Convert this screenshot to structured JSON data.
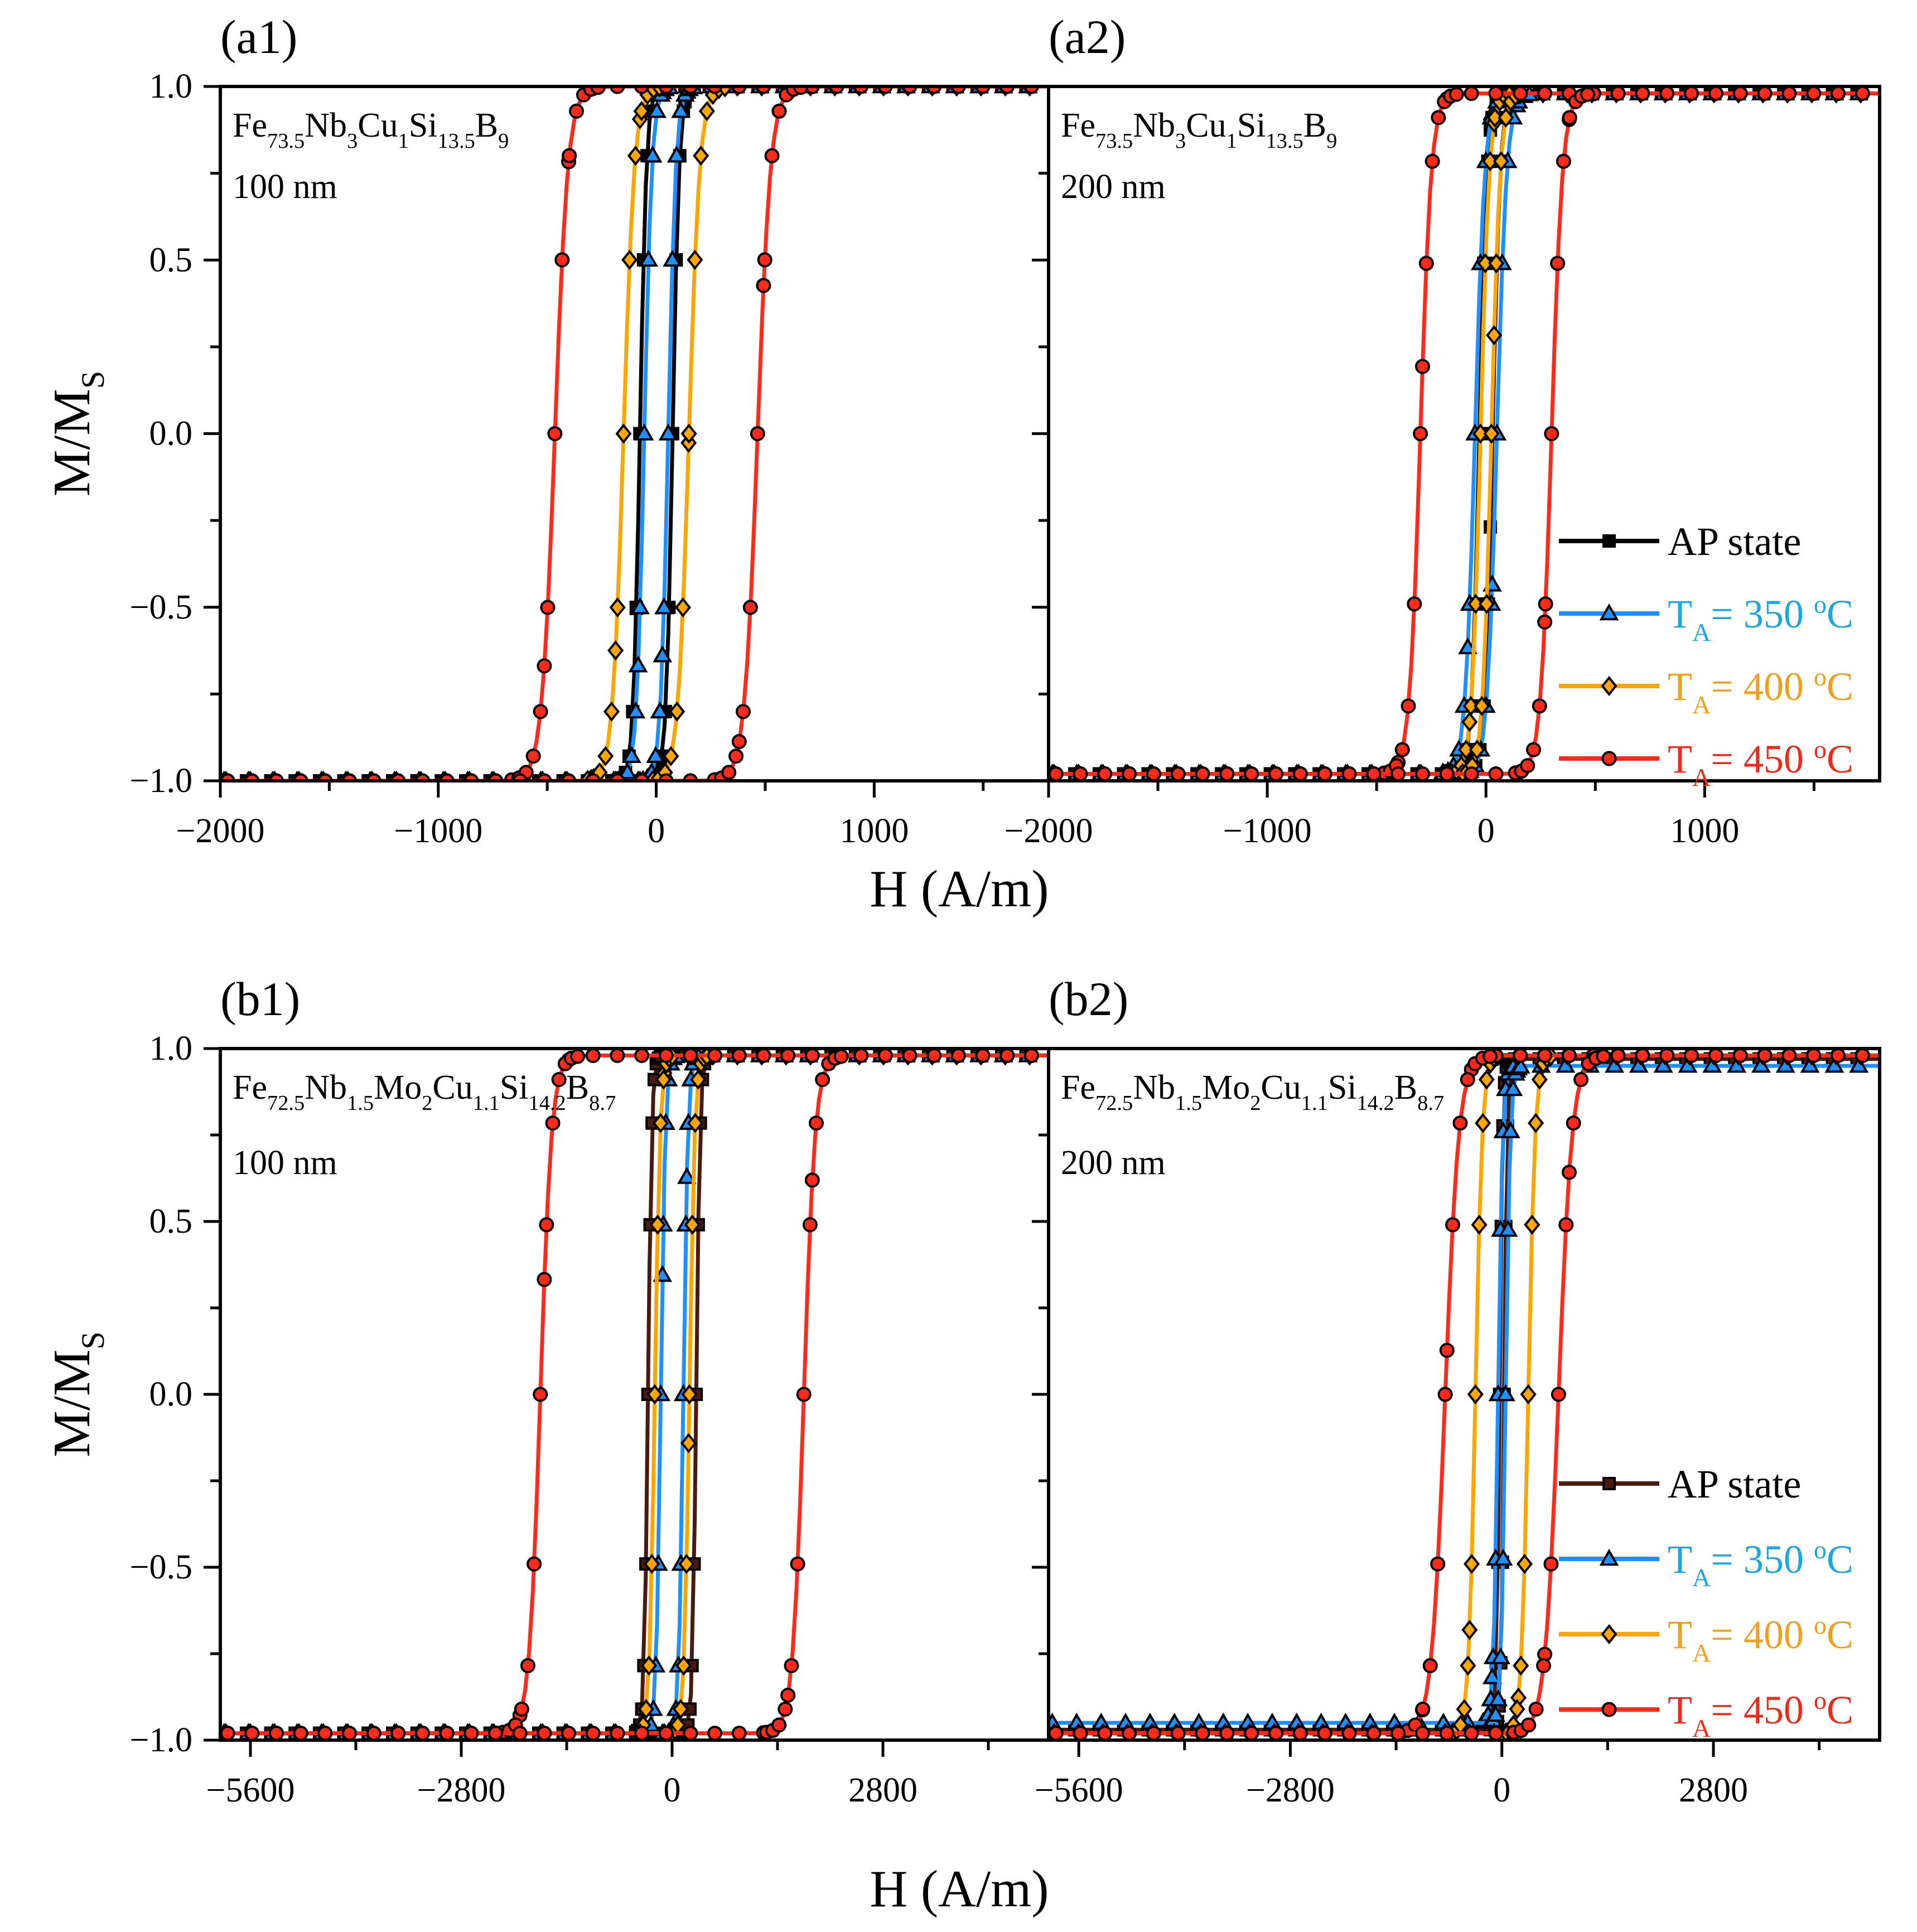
{
  "figure_xlabel": "H (A/m)",
  "figure_ylabel": "M/M",
  "figure_ylabel_sub": "S",
  "legend_labels": {
    "AP": "AP state",
    "T350": "T",
    "T400": "T",
    "T450": "T",
    "T_sub": "A",
    "T350_val": "= 350 ",
    "T400_val": "= 400 ",
    "T450_val": "= 450 ",
    "degree": "o",
    "unit": "C"
  },
  "colors": {
    "AP": "#000000",
    "AP_b": "#4a1a10",
    "T350": "#1e90ff",
    "T400": "#ffa500",
    "T450": "#ff2a1a",
    "text350": "#1ea5e0",
    "text400": "#f0a020",
    "text450": "#ee2a1a"
  },
  "chart_data": [
    {
      "panel": "(a1)",
      "type": "line",
      "composition": [
        [
          "Fe",
          "73.5"
        ],
        [
          "Nb",
          "3"
        ],
        [
          "Cu",
          "1"
        ],
        [
          "Si",
          "13.5"
        ],
        [
          "B",
          "9"
        ]
      ],
      "thickness": "100 nm",
      "xlabel": "H (A/m)",
      "ylabel": "M/MS",
      "xlim": [
        -2000,
        1800
      ],
      "ylim": [
        -1.0,
        1.0
      ],
      "xticks": [
        -2000,
        -1000,
        0,
        1000
      ],
      "xtick_labels": [
        "−2000",
        "−1000",
        "0",
        "1000"
      ],
      "yticks": [
        -1.0,
        -0.5,
        0.0,
        0.5,
        1.0
      ],
      "ytick_labels": [
        "−1.0",
        "−0.5",
        "0.0",
        "0.5",
        "1.0"
      ],
      "show_legend": false,
      "series": [
        {
          "name": "AP state",
          "Hc": 75,
          "w": 30,
          "Ms": 1.0
        },
        {
          "name": "TA = 350 oC",
          "Hc": 55,
          "w": 35,
          "Ms": 1.0
        },
        {
          "name": "TA = 400 oC",
          "Hc": 150,
          "w": 50,
          "Ms": 1.0
        },
        {
          "name": "TA = 450 oC",
          "Hc": 465,
          "w": 60,
          "Ms": 1.0
        }
      ]
    },
    {
      "panel": "(a2)",
      "type": "line",
      "composition": [
        [
          "Fe",
          "73.5"
        ],
        [
          "Nb",
          "3"
        ],
        [
          "Cu",
          "1"
        ],
        [
          "Si",
          "13.5"
        ],
        [
          "B",
          "9"
        ]
      ],
      "thickness": "200 nm",
      "xlabel": "H (A/m)",
      "ylabel": "M/MS",
      "xlim": [
        -2000,
        1800
      ],
      "ylim": [
        -1.0,
        1.0
      ],
      "xticks": [
        -2000,
        -1000,
        0,
        1000
      ],
      "xtick_labels": [
        "−2000",
        "−1000",
        "0",
        "1000"
      ],
      "yticks": [
        -1.0,
        -0.5,
        0.0,
        0.5,
        1.0
      ],
      "ytick_labels": [
        "−1.0",
        "−0.5",
        "0.0",
        "0.5",
        "1.0"
      ],
      "show_legend": true,
      "legend_position": "lower-right",
      "series": [
        {
          "name": "AP state",
          "Hc": 30,
          "w": 35,
          "Ms": 0.98
        },
        {
          "name": "TA = 350 oC",
          "Hc": 50,
          "w": 45,
          "Ms": 0.98
        },
        {
          "name": "TA = 400 oC",
          "Hc": 25,
          "w": 40,
          "Ms": 0.98
        },
        {
          "name": "TA = 450 oC",
          "Hc": 300,
          "w": 50,
          "Ms": 0.98
        }
      ]
    },
    {
      "panel": "(b1)",
      "type": "line",
      "composition": [
        [
          "Fe",
          "72.5"
        ],
        [
          "Nb",
          "1.5"
        ],
        [
          "Mo",
          "2"
        ],
        [
          "Cu",
          "1.1"
        ],
        [
          "Si",
          "14.2"
        ],
        [
          "B",
          "8.7"
        ]
      ],
      "thickness": "100 nm",
      "xlabel": "H (A/m)",
      "ylabel": "M/MS",
      "xlim": [
        -6000,
        5000
      ],
      "ylim": [
        -1.0,
        1.0
      ],
      "xticks": [
        -5600,
        -2800,
        0,
        2800
      ],
      "xtick_labels": [
        "−5600",
        "−2800",
        "0",
        "2800"
      ],
      "yticks": [
        -1.0,
        -0.5,
        0.0,
        0.5,
        1.0
      ],
      "ytick_labels": [
        "−1.0",
        "−0.5",
        "0.0",
        "0.5",
        "1.0"
      ],
      "show_legend": false,
      "series": [
        {
          "name": "AP state",
          "Hc": 320,
          "w": 50,
          "Ms": 0.98
        },
        {
          "name": "TA = 350 oC",
          "Hc": 150,
          "w": 60,
          "Ms": 0.98
        },
        {
          "name": "TA = 400 oC",
          "Hc": 230,
          "w": 70,
          "Ms": 0.98
        },
        {
          "name": "TA = 450 oC",
          "Hc": 1750,
          "w": 150,
          "Ms": 0.98
        }
      ]
    },
    {
      "panel": "(b2)",
      "type": "line",
      "composition": [
        [
          "Fe",
          "72.5"
        ],
        [
          "Nb",
          "1.5"
        ],
        [
          "Mo",
          "2"
        ],
        [
          "Cu",
          "1.1"
        ],
        [
          "Si",
          "14.2"
        ],
        [
          "B",
          "8.7"
        ]
      ],
      "thickness": "200 nm",
      "xlabel": "H (A/m)",
      "ylabel": "M/MS",
      "xlim": [
        -6000,
        5000
      ],
      "ylim": [
        -1.0,
        1.0
      ],
      "xticks": [
        -5600,
        -2800,
        0,
        2800
      ],
      "xtick_labels": [
        "−5600",
        "−2800",
        "0",
        "2800"
      ],
      "yticks": [
        -1.0,
        -0.5,
        0.0,
        0.5,
        1.0
      ],
      "ytick_labels": [
        "−1.0",
        "−0.5",
        "0.0",
        "0.5",
        "1.0"
      ],
      "show_legend": true,
      "legend_position": "lower-right",
      "series": [
        {
          "name": "AP state",
          "Hc": 30,
          "w": 40,
          "Ms": 0.97
        },
        {
          "name": "TA = 350 oC",
          "Hc": 50,
          "w": 60,
          "Ms": 0.95
        },
        {
          "name": "TA = 400 oC",
          "Hc": 350,
          "w": 90,
          "Ms": 0.98
        },
        {
          "name": "TA = 450 oC",
          "Hc": 750,
          "w": 180,
          "Ms": 0.98
        }
      ]
    }
  ]
}
